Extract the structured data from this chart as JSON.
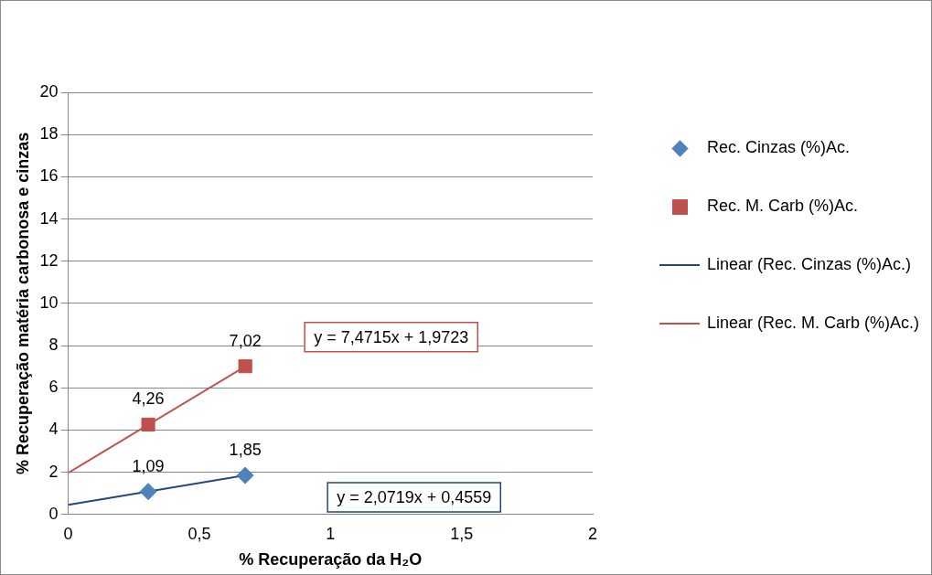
{
  "chart_data": {
    "type": "scatter",
    "xlabel": "% Recuperação da H₂O",
    "ylabel": "% Recuperação matéria carbonosa e cinzas",
    "xlim": [
      0,
      2
    ],
    "xticks": [
      0,
      {
        "value": 0.5,
        "label": "0,5"
      },
      1,
      {
        "value": 1.5,
        "label": "1,5"
      },
      2
    ],
    "ylim": [
      0,
      20
    ],
    "yticks": [
      0,
      2,
      4,
      6,
      8,
      10,
      12,
      14,
      16,
      18,
      20
    ],
    "grid": "y",
    "legend": "right",
    "series": [
      {
        "name": "Rec. Cinzas (%)Ac.",
        "color": "#4f81bd",
        "marker": "diamond",
        "x": [
          0.305,
          0.675
        ],
        "values": [
          1.09,
          1.85
        ],
        "value_labels": [
          "1,09",
          "1,85"
        ]
      },
      {
        "name": "Rec. M. Carb (%)Ac.",
        "color": "#c0504d",
        "marker": "square",
        "x": [
          0.305,
          0.675
        ],
        "values": [
          4.26,
          7.02
        ],
        "value_labels": [
          "4,26",
          "7,02"
        ]
      },
      {
        "name": "Linear (Rec. Cinzas (%)Ac.)",
        "type": "line",
        "color": "#1f497d",
        "marker": "none",
        "x": [
          0,
          0.675
        ],
        "values": [
          0.4559,
          1.854
        ]
      },
      {
        "name": "Linear (Rec. M. Carb (%)Ac.)",
        "type": "line",
        "color": "#c0504d",
        "marker": "none",
        "x": [
          0,
          0.675
        ],
        "values": [
          1.9723,
          7.015
        ]
      }
    ],
    "annotations": [
      "y = 7,4715x + 1,9723",
      "y = 2,0719x + 0,4559"
    ]
  }
}
